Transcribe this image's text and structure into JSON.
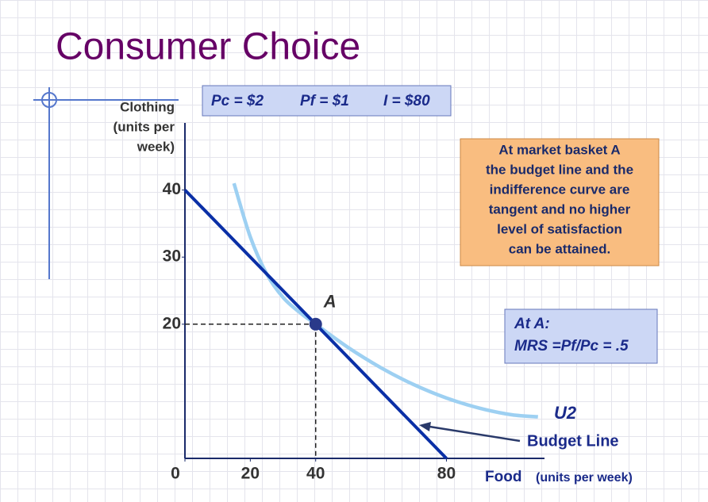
{
  "chart_data": {
    "type": "line",
    "title": "Consumer Choice",
    "price_box": [
      "Pc = $2",
      "Pf = $1",
      "I = $80"
    ],
    "ylabel": [
      "Clothing",
      "(units per",
      "week)"
    ],
    "xlabel": "Food",
    "xlabel_note": "(units per week)",
    "xlim": [
      0,
      110
    ],
    "ylim": [
      0,
      50
    ],
    "xticks": [
      0,
      20,
      40,
      80
    ],
    "yticks": [
      20,
      30,
      40
    ],
    "series": [
      {
        "name": "Budget Line",
        "color": "#0a2fa6",
        "x": [
          0,
          80
        ],
        "values": [
          40,
          0
        ]
      },
      {
        "name": "U2",
        "color": "#9dd0f2",
        "x": [
          15,
          20,
          25,
          30,
          35,
          40,
          50,
          60,
          70,
          80,
          90,
          100,
          108
        ],
        "values": [
          41,
          33,
          27.5,
          24,
          21.8,
          20,
          16.5,
          13.5,
          11,
          9,
          7.5,
          6.5,
          6.2
        ]
      }
    ],
    "point": {
      "label": "A",
      "x": 40,
      "y": 20
    },
    "note_box": [
      "At market basket A",
      "the budget line and the",
      "indifference curve are",
      "tangent and no higher",
      "level of satisfaction",
      "can be attained."
    ],
    "mrs_box": [
      "At A:",
      "MRS =Pf/Pc = .5"
    ]
  }
}
